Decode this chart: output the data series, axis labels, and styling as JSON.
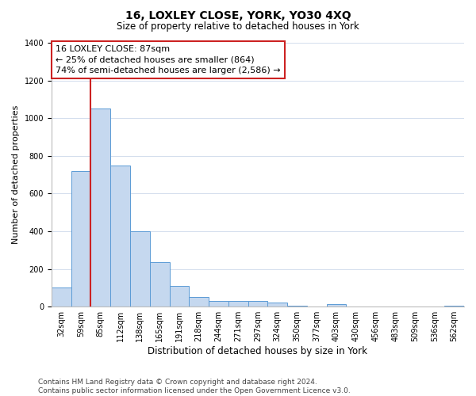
{
  "title": "16, LOXLEY CLOSE, YORK, YO30 4XQ",
  "subtitle": "Size of property relative to detached houses in York",
  "xlabel": "Distribution of detached houses by size in York",
  "ylabel": "Number of detached properties",
  "categories": [
    "32sqm",
    "59sqm",
    "85sqm",
    "112sqm",
    "138sqm",
    "165sqm",
    "191sqm",
    "218sqm",
    "244sqm",
    "271sqm",
    "297sqm",
    "324sqm",
    "350sqm",
    "377sqm",
    "403sqm",
    "430sqm",
    "456sqm",
    "483sqm",
    "509sqm",
    "536sqm",
    "562sqm"
  ],
  "values": [
    100,
    720,
    1050,
    750,
    400,
    235,
    110,
    50,
    30,
    30,
    30,
    20,
    5,
    0,
    15,
    0,
    0,
    0,
    0,
    0,
    5
  ],
  "bar_color": "#c5d8ef",
  "bar_edge_color": "#5b9bd5",
  "property_size_label": "16 LOXLEY CLOSE: 87sqm",
  "annotation_line1": "← 25% of detached houses are smaller (864)",
  "annotation_line2": "74% of semi-detached houses are larger (2,586) →",
  "vline_color": "#cc2222",
  "annotation_box_edge_color": "#cc2222",
  "vline_bar_index": 2,
  "ylim": [
    0,
    1400
  ],
  "yticks": [
    0,
    200,
    400,
    600,
    800,
    1000,
    1200,
    1400
  ],
  "title_fontsize": 10,
  "subtitle_fontsize": 8.5,
  "xlabel_fontsize": 8.5,
  "ylabel_fontsize": 8,
  "tick_fontsize": 7,
  "annotation_fontsize": 8,
  "footer_text": "Contains HM Land Registry data © Crown copyright and database right 2024.\nContains public sector information licensed under the Open Government Licence v3.0.",
  "footer_fontsize": 6.5,
  "background_color": "#ffffff",
  "grid_color": "#ccd8ea"
}
